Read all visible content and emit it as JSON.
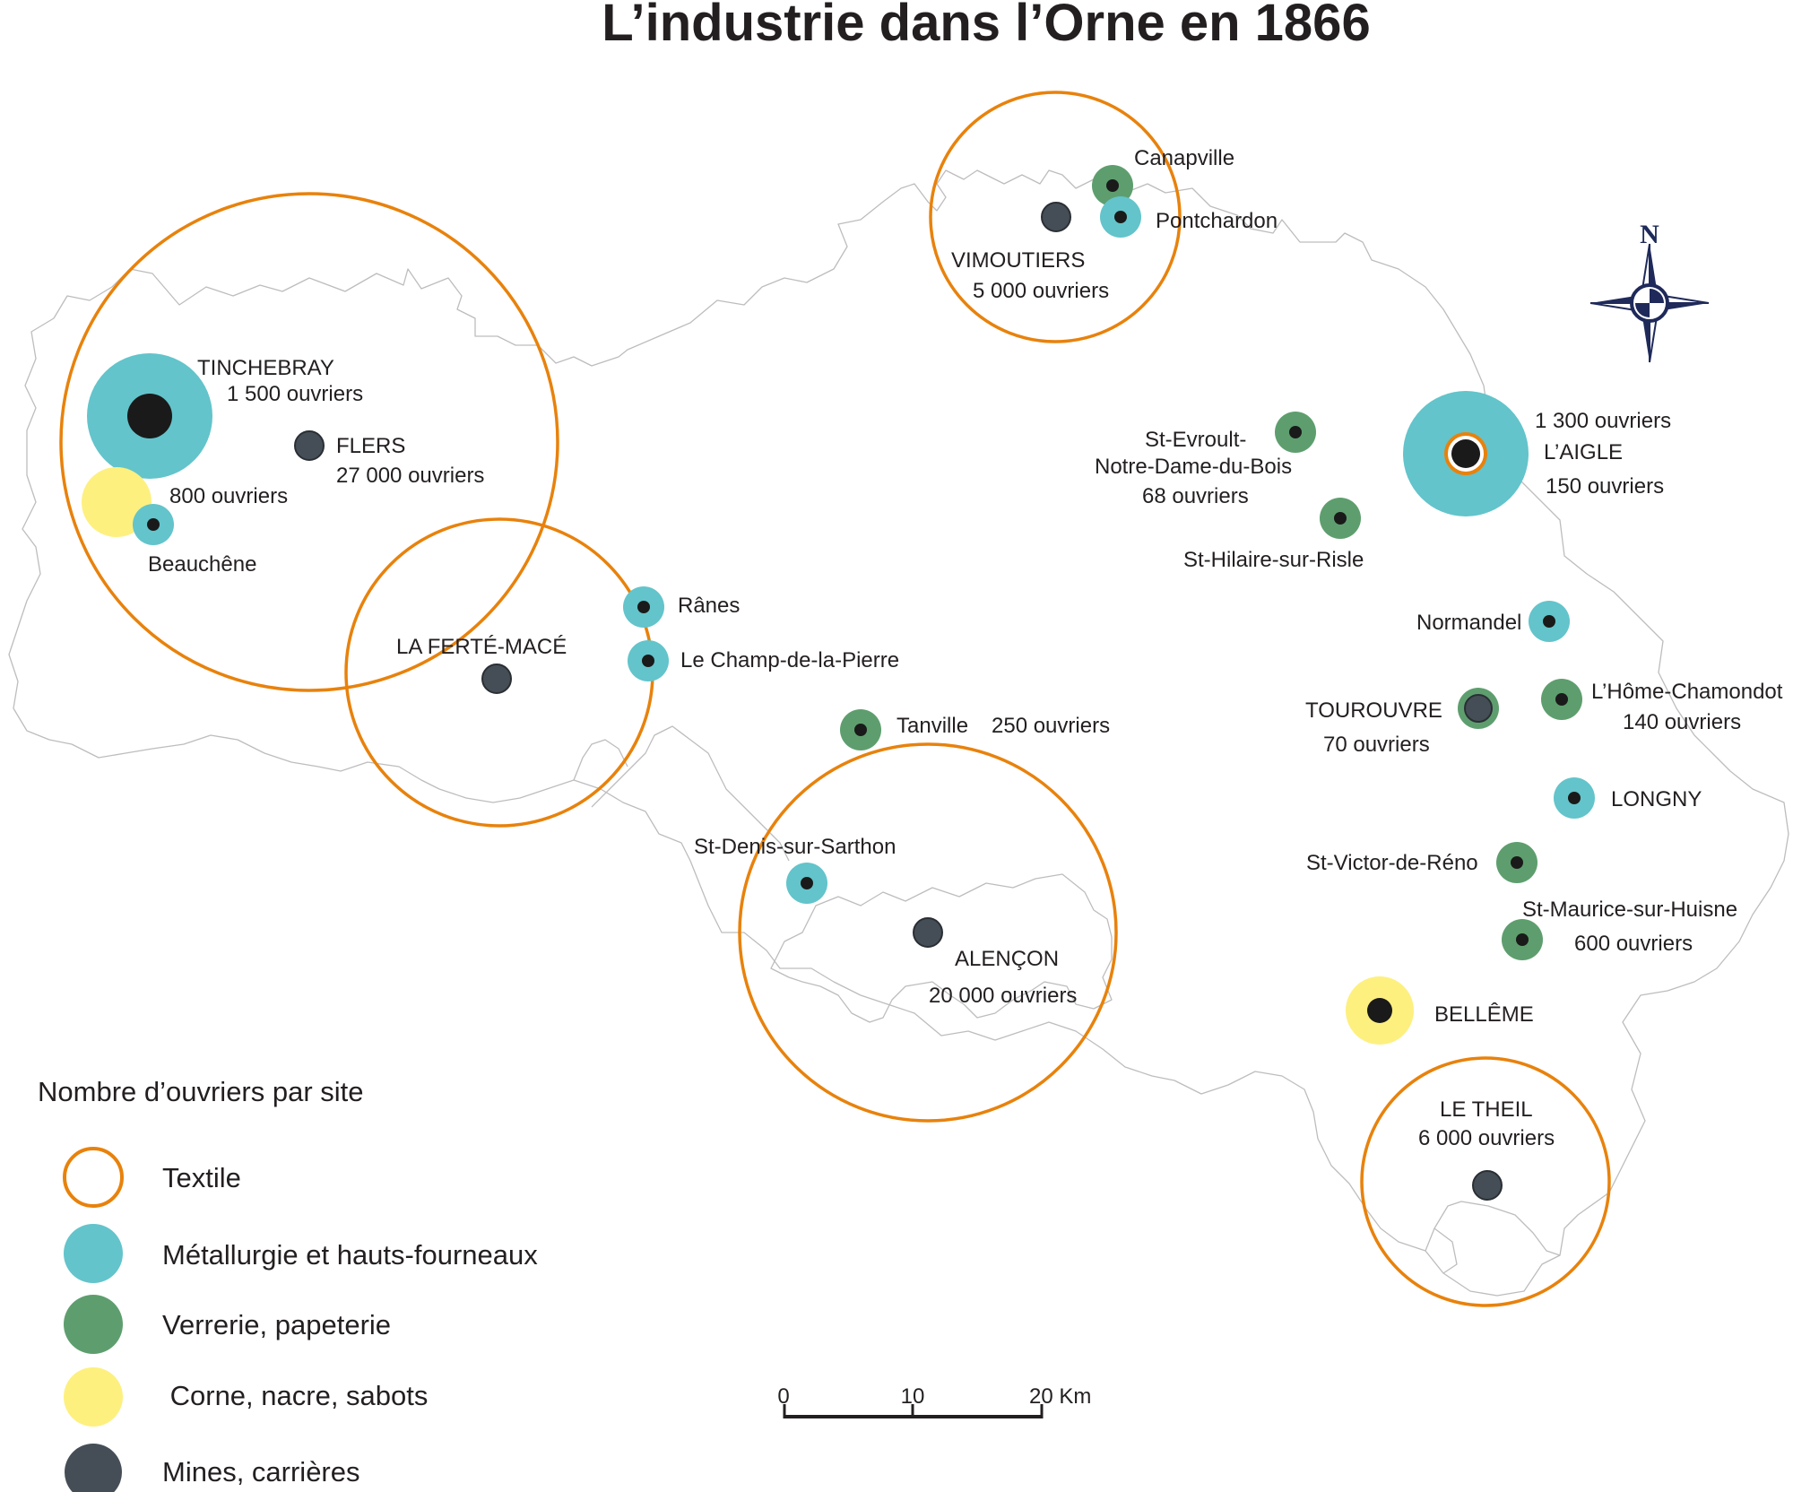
{
  "title": "L’industrie dans l’Orne en 1866",
  "colors": {
    "textile": "#e8820c",
    "metallurgie": "#63c4cb",
    "verrerie": "#5e9e6e",
    "corne": "#fdf07f",
    "mines": "#454e56",
    "site_dot": "#1a1a1a",
    "border": "#bdbdbd"
  },
  "labels": {
    "tinchebray": "TINCHEBRAY",
    "tinchebray_workers": "1 500 ouvriers",
    "flers": "FLERS",
    "flers_workers": "27 000 ouvriers",
    "corne_workers": "800 ouvriers",
    "beauchene": "Beauchêne",
    "ferte_mace": "LA FERTÉ-MACÉ",
    "ranes": "Rânes",
    "champ_pierre": "Le Champ-de-la-Pierre",
    "canapville": "Canapville",
    "pontchardon": "Pontchardon",
    "vimoutiers": "VIMOUTIERS",
    "vimoutiers_workers": "5 000 ouvriers",
    "tanville": "Tanville",
    "tanville_workers": "250 ouvriers",
    "st_denis": "St-Denis-sur-Sarthon",
    "alencon": "ALENÇON",
    "alencon_workers": "20 000 ouvriers",
    "st_evroult_1": "St-Evroult-",
    "st_evroult_2": "Notre-Dame-du-Bois",
    "st_evroult_workers": "68 ouvriers",
    "st_hilaire": "St-Hilaire-sur-Risle",
    "laigle_workers_1": "1 300 ouvriers",
    "laigle": "L’AIGLE",
    "laigle_workers_2": "150 ouvriers",
    "normandel": "Normandel",
    "tourouvre": "TOUROUVRE",
    "tourouvre_workers": "70 ouvriers",
    "home_chamondot": "L’Hôme-Chamondot",
    "home_chamondot_workers": "140 ouvriers",
    "longny": "LONGNY",
    "st_victor": "St-Victor-de-Réno",
    "st_maurice": "St-Maurice-sur-Huisne",
    "st_maurice_workers": "600 ouvriers",
    "belleme": "BELLÊME",
    "le_theil": "LE THEIL",
    "le_theil_workers": "6 000 ouvriers"
  },
  "legend": {
    "title": "Nombre d’ouvriers par site",
    "items": [
      {
        "label": "Textile",
        "category": "textile"
      },
      {
        "label": "Métallurgie et hauts-fourneaux",
        "category": "metallurgie"
      },
      {
        "label": "Verrerie, papeterie",
        "category": "verrerie"
      },
      {
        "label": " Corne, nacre, sabots",
        "category": "corne"
      },
      {
        "label": "Mines, carrières",
        "category": "mines"
      }
    ]
  },
  "scale_bar": {
    "ticks": [
      "0",
      "10",
      "20 Km"
    ]
  },
  "compass": {
    "label": "N",
    "icon": "compass-rose-icon"
  }
}
